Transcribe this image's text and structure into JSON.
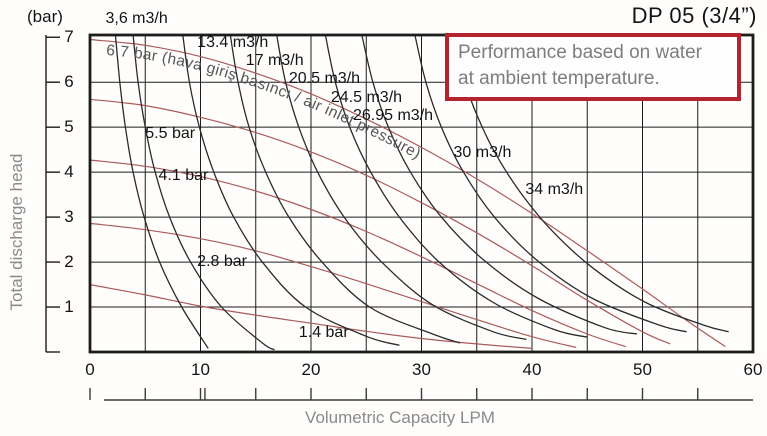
{
  "window": {
    "title": "DP 05 (3/4”)"
  },
  "note": {
    "lines": [
      "Performance based on water",
      "at ambient temperature."
    ]
  },
  "chart_data": {
    "type": "line",
    "title": "DP 05 (3/4”)",
    "xlabel": "Volumetric Capacity LPM",
    "ylabel": "Total discharge head",
    "y_unit_label": "(bar)",
    "xlim": [
      0,
      60
    ],
    "ylim": [
      0,
      7.05
    ],
    "x_ticks": [
      0,
      10,
      20,
      30,
      40,
      50,
      60
    ],
    "y_ticks": [
      1,
      2,
      3,
      4,
      5,
      6,
      7
    ],
    "x_grid_step_lpm": 5,
    "y_grid_step_bar": 1,
    "ruler_ticks_lpm": [
      0,
      5,
      10,
      10.4,
      15,
      20,
      25,
      30,
      35,
      40,
      45,
      50,
      55
    ],
    "grid": "on",
    "colors": {
      "pressure_curve": "#ab5a5a",
      "consumption_curve": "#2b2b2b",
      "grid_line": "#1c1c1c",
      "note_border": "#b4232e",
      "muted_text": "#8a8a8a",
      "text": "#141414"
    },
    "series": {
      "air_inlet_pressure_curves": [
        {
          "label": "6.7 bar",
          "inline_label": "6.7 bar (hava giriş basıncı / air inlet pressure)",
          "points": [
            [
              0,
              6.95
            ],
            [
              5,
              6.82
            ],
            [
              10,
              6.57
            ],
            [
              15,
              6.2
            ],
            [
              20,
              5.74
            ],
            [
              25,
              5.18
            ],
            [
              30,
              4.55
            ],
            [
              35,
              3.85
            ],
            [
              40,
              3.08
            ],
            [
              45,
              2.25
            ],
            [
              50,
              1.4
            ],
            [
              54,
              0.7
            ],
            [
              57.5,
              0.12
            ]
          ]
        },
        {
          "label": "5.5 bar",
          "label_at": [
            5.0,
            4.85
          ],
          "points": [
            [
              0,
              5.62
            ],
            [
              5,
              5.48
            ],
            [
              10,
              5.22
            ],
            [
              15,
              4.88
            ],
            [
              20,
              4.45
            ],
            [
              25,
              3.93
            ],
            [
              30,
              3.32
            ],
            [
              35,
              2.65
            ],
            [
              40,
              1.92
            ],
            [
              45,
              1.15
            ],
            [
              50,
              0.45
            ],
            [
              52.5,
              0.18
            ]
          ]
        },
        {
          "label": "4.1 bar",
          "label_at": [
            6.2,
            3.92
          ],
          "points": [
            [
              0,
              4.27
            ],
            [
              5,
              4.13
            ],
            [
              10,
              3.9
            ],
            [
              15,
              3.58
            ],
            [
              20,
              3.17
            ],
            [
              25,
              2.68
            ],
            [
              30,
              2.12
            ],
            [
              35,
              1.52
            ],
            [
              40,
              0.92
            ],
            [
              45,
              0.4
            ],
            [
              48.5,
              0.12
            ]
          ]
        },
        {
          "label": "2.8 bar",
          "label_at": [
            9.7,
            2.0
          ],
          "points": [
            [
              0,
              2.86
            ],
            [
              5,
              2.72
            ],
            [
              10,
              2.52
            ],
            [
              15,
              2.25
            ],
            [
              20,
              1.9
            ],
            [
              25,
              1.52
            ],
            [
              30,
              1.12
            ],
            [
              35,
              0.72
            ],
            [
              40,
              0.34
            ],
            [
              44,
              0.1
            ]
          ]
        },
        {
          "label": "1.4 bar",
          "label_at": [
            18.9,
            0.42
          ],
          "points": [
            [
              0,
              1.5
            ],
            [
              5,
              1.27
            ],
            [
              10,
              1.02
            ],
            [
              15,
              0.82
            ],
            [
              20,
              0.64
            ],
            [
              25,
              0.46
            ],
            [
              30,
              0.3
            ],
            [
              35,
              0.18
            ],
            [
              40,
              0.08
            ]
          ]
        }
      ],
      "air_consumption_curves": [
        {
          "label": "3,6 m3/h",
          "label_at": [
            1.4,
            7.4
          ],
          "points": [
            [
              3.9,
              7.05
            ],
            [
              4.35,
              6
            ],
            [
              5.0,
              5
            ],
            [
              5.9,
              4
            ],
            [
              7.2,
              3
            ],
            [
              9.1,
              2
            ],
            [
              11.9,
              1
            ],
            [
              15.6,
              0.2
            ],
            [
              16.7,
              0.05
            ]
          ]
        },
        {
          "label": "13.4 m3/h",
          "label_at": [
            9.7,
            6.87
          ],
          "points": [
            [
              8.4,
              7.05
            ],
            [
              9.0,
              6
            ],
            [
              9.9,
              5
            ],
            [
              11.2,
              4
            ],
            [
              13.0,
              3
            ],
            [
              15.6,
              2
            ],
            [
              19.5,
              1
            ],
            [
              25.0,
              0.35
            ],
            [
              28.0,
              0.15
            ]
          ]
        },
        {
          "label": "17 m3/h",
          "label_at": [
            14.1,
            6.48
          ],
          "points": [
            [
              12.7,
              7.05
            ],
            [
              13.4,
              6
            ],
            [
              14.4,
              5
            ],
            [
              15.9,
              4
            ],
            [
              18.0,
              3
            ],
            [
              21.0,
              2
            ],
            [
              25.3,
              1
            ],
            [
              31.0,
              0.4
            ],
            [
              33.5,
              0.2
            ]
          ]
        },
        {
          "label": "20.5 m3/h",
          "label_at": [
            18.0,
            6.07
          ],
          "points": [
            [
              16.9,
              7.05
            ],
            [
              17.7,
              6
            ],
            [
              18.9,
              5
            ],
            [
              20.6,
              4
            ],
            [
              23.0,
              3
            ],
            [
              26.4,
              2
            ],
            [
              31.0,
              1.05
            ],
            [
              36.5,
              0.45
            ],
            [
              39.5,
              0.28
            ]
          ]
        },
        {
          "label": "24.5 m3/h",
          "label_at": [
            21.8,
            5.64
          ],
          "points": [
            [
              21.3,
              7.05
            ],
            [
              22.2,
              6
            ],
            [
              23.5,
              5
            ],
            [
              25.4,
              4
            ],
            [
              28.0,
              3
            ],
            [
              31.6,
              2
            ],
            [
              36.5,
              1.1
            ],
            [
              42.0,
              0.5
            ],
            [
              45.0,
              0.33
            ]
          ]
        },
        {
          "label": "26.95 m3/h",
          "label_at": [
            23.8,
            5.25
          ],
          "points": [
            [
              24.6,
              7.05
            ],
            [
              25.6,
              6
            ],
            [
              27.0,
              5
            ],
            [
              29.0,
              4
            ],
            [
              31.8,
              3
            ],
            [
              35.6,
              2.05
            ],
            [
              40.5,
              1.2
            ],
            [
              46.5,
              0.55
            ],
            [
              49.5,
              0.4
            ]
          ]
        },
        {
          "label": "30 m3/h",
          "label_at": [
            32.9,
            4.42
          ],
          "points": [
            [
              29.4,
              7.05
            ],
            [
              30.4,
              6
            ],
            [
              31.8,
              5
            ],
            [
              33.8,
              4
            ],
            [
              36.6,
              3
            ],
            [
              40.4,
              2.05
            ],
            [
              45.4,
              1.2
            ],
            [
              51.5,
              0.6
            ],
            [
              54.0,
              0.45
            ]
          ]
        },
        {
          "label": "34 m3/h",
          "label_at": [
            39.4,
            3.6
          ],
          "points": [
            [
              33.5,
              6.3
            ],
            [
              34.8,
              5.4
            ],
            [
              36.5,
              4.5
            ],
            [
              38.8,
              3.6
            ],
            [
              41.8,
              2.7
            ],
            [
              45.6,
              1.85
            ],
            [
              50.3,
              1.1
            ],
            [
              55.5,
              0.6
            ],
            [
              57.8,
              0.45
            ]
          ]
        }
      ],
      "unlabeled_consumption_curve": {
        "points": [
          [
            2.3,
            7.05
          ],
          [
            2.7,
            6
          ],
          [
            3.2,
            5
          ],
          [
            3.9,
            4
          ],
          [
            4.9,
            3
          ],
          [
            6.3,
            2
          ],
          [
            8.3,
            1
          ],
          [
            10.7,
            0.08
          ]
        ]
      }
    }
  }
}
